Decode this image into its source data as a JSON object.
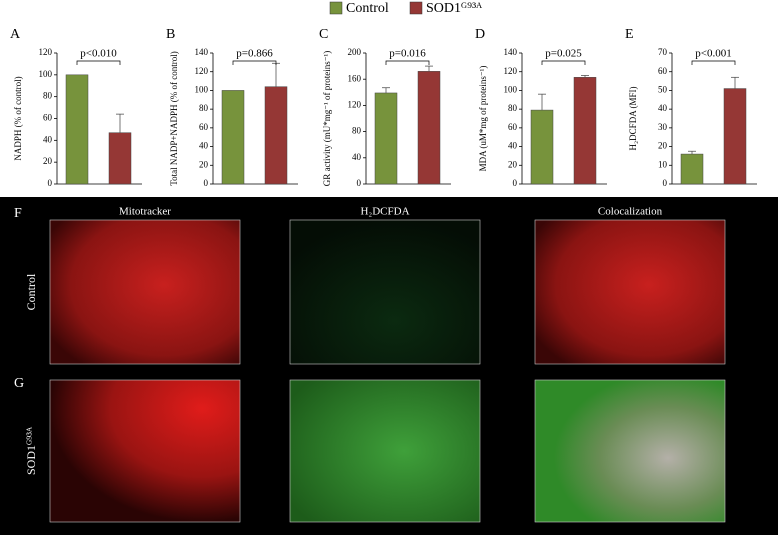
{
  "legend": [
    {
      "name": "Control",
      "color": "#77933c"
    },
    {
      "name": "SOD1ᴳ⁹³ᴬ",
      "color": "#953735"
    }
  ],
  "chart_data": [
    {
      "type": "bar",
      "panel": "A",
      "ylabel": "NADPH (% of control)",
      "categories": [
        null,
        null
      ],
      "values": [
        100,
        47
      ],
      "errors": [
        null,
        17
      ],
      "colors": [
        "#77933c",
        "#953735"
      ],
      "ylim": [
        0,
        120
      ],
      "yticks": [
        0,
        20,
        40,
        60,
        80,
        100,
        120
      ],
      "annotation": "p<0.010"
    },
    {
      "type": "bar",
      "panel": "B",
      "ylabel": "Total NADP+NADPH (% of control)",
      "categories": [
        null,
        null
      ],
      "values": [
        100,
        104
      ],
      "errors": [
        null,
        25
      ],
      "colors": [
        "#77933c",
        "#953735"
      ],
      "ylim": [
        0,
        140
      ],
      "yticks": [
        0,
        20,
        40,
        60,
        80,
        100,
        120,
        140
      ],
      "annotation": "p=0.866"
    },
    {
      "type": "bar",
      "panel": "C",
      "ylabel": "GR activity (mU*mg⁻¹ of proteins⁻¹)",
      "categories": [
        null,
        null
      ],
      "values": [
        139,
        172
      ],
      "errors": [
        8,
        8
      ],
      "colors": [
        "#77933c",
        "#953735"
      ],
      "ylim": [
        0,
        200
      ],
      "yticks": [
        0,
        40,
        80,
        120,
        160,
        200
      ],
      "annotation": "p=0.016"
    },
    {
      "type": "bar",
      "panel": "D",
      "ylabel": "MDA (uM*mg of proteins⁻¹)",
      "categories": [
        null,
        null
      ],
      "values": [
        79,
        114
      ],
      "errors": [
        17,
        2
      ],
      "colors": [
        "#77933c",
        "#953735"
      ],
      "ylim": [
        0,
        140
      ],
      "yticks": [
        0,
        20,
        40,
        60,
        80,
        100,
        120,
        140
      ],
      "annotation": "p=0.025"
    },
    {
      "type": "bar",
      "panel": "E",
      "ylabel": "H₂DCFDA (MFI)",
      "categories": [
        null,
        null
      ],
      "values": [
        16,
        51
      ],
      "errors": [
        1.5,
        6
      ],
      "colors": [
        "#77933c",
        "#953735"
      ],
      "ylim": [
        0,
        70
      ],
      "yticks": [
        0,
        10,
        20,
        30,
        40,
        50,
        60,
        70
      ],
      "annotation": "p<0.001"
    }
  ],
  "images": {
    "panels": [
      "F",
      "G"
    ],
    "columns": [
      "Mitotracker",
      "H₂DCFDA",
      "Colocalization"
    ],
    "rows": [
      "Control",
      "SOD1ᴳ⁹³ᴬ"
    ]
  }
}
